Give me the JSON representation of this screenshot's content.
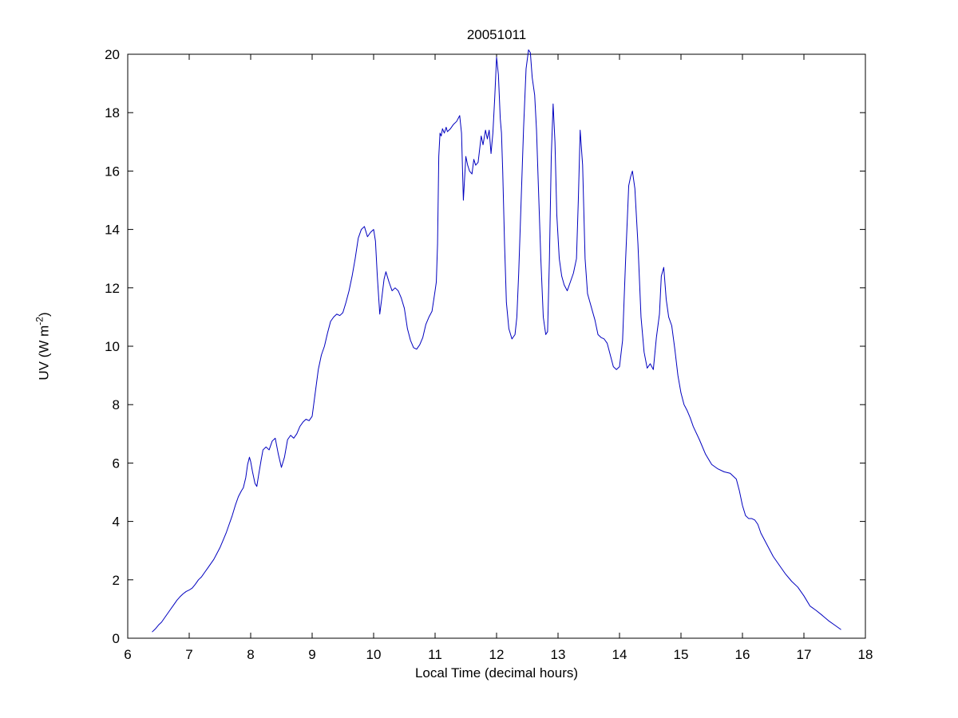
{
  "figure": {
    "background": "#ffffff"
  },
  "chart_data": {
    "type": "line",
    "title": "20051011",
    "xlabel": "Local Time (decimal hours)",
    "ylabel_prefix": "UV (W m",
    "ylabel_sup": "-2",
    "ylabel_suffix": ")",
    "xlim": [
      6,
      18
    ],
    "ylim": [
      0,
      20
    ],
    "xticks": [
      6,
      7,
      8,
      9,
      10,
      11,
      12,
      13,
      14,
      15,
      16,
      17,
      18
    ],
    "yticks": [
      0,
      2,
      4,
      6,
      8,
      10,
      12,
      14,
      16,
      18,
      20
    ],
    "grid": false,
    "legend": "none",
    "line_color": "#0000BF",
    "axis_color": "#000000",
    "series": [
      {
        "name": "UV",
        "points": [
          [
            6.4,
            0.22
          ],
          [
            6.45,
            0.32
          ],
          [
            6.5,
            0.45
          ],
          [
            6.55,
            0.55
          ],
          [
            6.6,
            0.7
          ],
          [
            6.65,
            0.85
          ],
          [
            6.7,
            1.0
          ],
          [
            6.75,
            1.15
          ],
          [
            6.8,
            1.3
          ],
          [
            6.85,
            1.42
          ],
          [
            6.9,
            1.52
          ],
          [
            6.95,
            1.6
          ],
          [
            7.0,
            1.65
          ],
          [
            7.05,
            1.72
          ],
          [
            7.1,
            1.85
          ],
          [
            7.15,
            2.0
          ],
          [
            7.2,
            2.1
          ],
          [
            7.25,
            2.25
          ],
          [
            7.3,
            2.4
          ],
          [
            7.35,
            2.55
          ],
          [
            7.4,
            2.7
          ],
          [
            7.45,
            2.9
          ],
          [
            7.5,
            3.1
          ],
          [
            7.55,
            3.35
          ],
          [
            7.6,
            3.6
          ],
          [
            7.65,
            3.9
          ],
          [
            7.7,
            4.2
          ],
          [
            7.75,
            4.55
          ],
          [
            7.8,
            4.85
          ],
          [
            7.85,
            5.05
          ],
          [
            7.88,
            5.15
          ],
          [
            7.92,
            5.5
          ],
          [
            7.95,
            5.95
          ],
          [
            7.98,
            6.2
          ],
          [
            8.0,
            6.05
          ],
          [
            8.03,
            5.7
          ],
          [
            8.07,
            5.3
          ],
          [
            8.1,
            5.2
          ],
          [
            8.13,
            5.6
          ],
          [
            8.17,
            6.1
          ],
          [
            8.2,
            6.45
          ],
          [
            8.25,
            6.55
          ],
          [
            8.3,
            6.45
          ],
          [
            8.35,
            6.75
          ],
          [
            8.4,
            6.85
          ],
          [
            8.45,
            6.3
          ],
          [
            8.5,
            5.85
          ],
          [
            8.55,
            6.2
          ],
          [
            8.6,
            6.8
          ],
          [
            8.65,
            6.95
          ],
          [
            8.7,
            6.85
          ],
          [
            8.75,
            7.0
          ],
          [
            8.8,
            7.25
          ],
          [
            8.85,
            7.4
          ],
          [
            8.9,
            7.5
          ],
          [
            8.95,
            7.45
          ],
          [
            9.0,
            7.6
          ],
          [
            9.05,
            8.4
          ],
          [
            9.1,
            9.2
          ],
          [
            9.15,
            9.7
          ],
          [
            9.2,
            10.0
          ],
          [
            9.25,
            10.45
          ],
          [
            9.3,
            10.85
          ],
          [
            9.35,
            11.0
          ],
          [
            9.4,
            11.1
          ],
          [
            9.45,
            11.05
          ],
          [
            9.5,
            11.15
          ],
          [
            9.55,
            11.5
          ],
          [
            9.6,
            11.9
          ],
          [
            9.65,
            12.4
          ],
          [
            9.7,
            13.0
          ],
          [
            9.75,
            13.7
          ],
          [
            9.8,
            14.0
          ],
          [
            9.85,
            14.1
          ],
          [
            9.9,
            13.75
          ],
          [
            9.95,
            13.9
          ],
          [
            10.0,
            14.0
          ],
          [
            10.03,
            13.6
          ],
          [
            10.06,
            12.4
          ],
          [
            10.1,
            11.1
          ],
          [
            10.13,
            11.6
          ],
          [
            10.17,
            12.3
          ],
          [
            10.2,
            12.55
          ],
          [
            10.25,
            12.2
          ],
          [
            10.3,
            11.9
          ],
          [
            10.35,
            12.0
          ],
          [
            10.4,
            11.9
          ],
          [
            10.45,
            11.65
          ],
          [
            10.5,
            11.3
          ],
          [
            10.55,
            10.6
          ],
          [
            10.6,
            10.2
          ],
          [
            10.65,
            9.95
          ],
          [
            10.7,
            9.9
          ],
          [
            10.75,
            10.05
          ],
          [
            10.8,
            10.3
          ],
          [
            10.85,
            10.75
          ],
          [
            10.9,
            11.0
          ],
          [
            10.95,
            11.2
          ],
          [
            11.0,
            11.9
          ],
          [
            11.02,
            12.2
          ],
          [
            11.04,
            13.5
          ],
          [
            11.06,
            16.5
          ],
          [
            11.08,
            17.3
          ],
          [
            11.1,
            17.2
          ],
          [
            11.12,
            17.45
          ],
          [
            11.15,
            17.3
          ],
          [
            11.18,
            17.5
          ],
          [
            11.2,
            17.35
          ],
          [
            11.25,
            17.45
          ],
          [
            11.3,
            17.6
          ],
          [
            11.35,
            17.7
          ],
          [
            11.4,
            17.9
          ],
          [
            11.43,
            17.3
          ],
          [
            11.46,
            15.0
          ],
          [
            11.5,
            16.5
          ],
          [
            11.53,
            16.2
          ],
          [
            11.56,
            16.0
          ],
          [
            11.6,
            15.9
          ],
          [
            11.63,
            16.4
          ],
          [
            11.66,
            16.2
          ],
          [
            11.7,
            16.3
          ],
          [
            11.75,
            17.2
          ],
          [
            11.78,
            16.9
          ],
          [
            11.82,
            17.4
          ],
          [
            11.85,
            17.1
          ],
          [
            11.88,
            17.4
          ],
          [
            11.91,
            16.6
          ],
          [
            11.94,
            17.3
          ],
          [
            11.97,
            18.5
          ],
          [
            12.0,
            19.9
          ],
          [
            12.03,
            19.3
          ],
          [
            12.06,
            17.8
          ],
          [
            12.08,
            17.3
          ],
          [
            12.1,
            16.0
          ],
          [
            12.13,
            13.5
          ],
          [
            12.16,
            11.5
          ],
          [
            12.2,
            10.6
          ],
          [
            12.25,
            10.25
          ],
          [
            12.3,
            10.4
          ],
          [
            12.33,
            11.0
          ],
          [
            12.36,
            12.5
          ],
          [
            12.4,
            15.0
          ],
          [
            12.44,
            17.5
          ],
          [
            12.48,
            19.5
          ],
          [
            12.52,
            20.15
          ],
          [
            12.55,
            20.05
          ],
          [
            12.58,
            19.2
          ],
          [
            12.62,
            18.6
          ],
          [
            12.65,
            17.4
          ],
          [
            12.68,
            15.5
          ],
          [
            12.72,
            13.0
          ],
          [
            12.76,
            11.0
          ],
          [
            12.8,
            10.4
          ],
          [
            12.83,
            10.5
          ],
          [
            12.86,
            13.0
          ],
          [
            12.89,
            16.5
          ],
          [
            12.92,
            18.3
          ],
          [
            12.95,
            17.0
          ],
          [
            12.98,
            14.5
          ],
          [
            13.02,
            13.0
          ],
          [
            13.06,
            12.4
          ],
          [
            13.1,
            12.1
          ],
          [
            13.15,
            11.9
          ],
          [
            13.2,
            12.2
          ],
          [
            13.25,
            12.5
          ],
          [
            13.3,
            13.0
          ],
          [
            13.33,
            15.0
          ],
          [
            13.36,
            17.4
          ],
          [
            13.4,
            16.2
          ],
          [
            13.44,
            13.0
          ],
          [
            13.48,
            11.8
          ],
          [
            13.52,
            11.5
          ],
          [
            13.56,
            11.2
          ],
          [
            13.6,
            10.9
          ],
          [
            13.65,
            10.4
          ],
          [
            13.7,
            10.3
          ],
          [
            13.75,
            10.25
          ],
          [
            13.8,
            10.1
          ],
          [
            13.85,
            9.7
          ],
          [
            13.9,
            9.3
          ],
          [
            13.95,
            9.2
          ],
          [
            14.0,
            9.3
          ],
          [
            14.05,
            10.2
          ],
          [
            14.1,
            13.0
          ],
          [
            14.15,
            15.5
          ],
          [
            14.18,
            15.8
          ],
          [
            14.21,
            16.0
          ],
          [
            14.25,
            15.4
          ],
          [
            14.3,
            13.5
          ],
          [
            14.35,
            11.0
          ],
          [
            14.4,
            9.8
          ],
          [
            14.45,
            9.25
          ],
          [
            14.5,
            9.4
          ],
          [
            14.55,
            9.2
          ],
          [
            14.6,
            10.3
          ],
          [
            14.65,
            11.1
          ],
          [
            14.68,
            12.4
          ],
          [
            14.72,
            12.7
          ],
          [
            14.76,
            11.6
          ],
          [
            14.8,
            11.0
          ],
          [
            14.85,
            10.7
          ],
          [
            14.9,
            9.9
          ],
          [
            14.95,
            9.0
          ],
          [
            15.0,
            8.4
          ],
          [
            15.05,
            8.0
          ],
          [
            15.1,
            7.8
          ],
          [
            15.15,
            7.55
          ],
          [
            15.2,
            7.25
          ],
          [
            15.3,
            6.8
          ],
          [
            15.4,
            6.3
          ],
          [
            15.5,
            5.95
          ],
          [
            15.6,
            5.8
          ],
          [
            15.7,
            5.7
          ],
          [
            15.8,
            5.65
          ],
          [
            15.9,
            5.45
          ],
          [
            15.95,
            5.05
          ],
          [
            16.0,
            4.55
          ],
          [
            16.05,
            4.2
          ],
          [
            16.1,
            4.1
          ],
          [
            16.15,
            4.1
          ],
          [
            16.2,
            4.05
          ],
          [
            16.25,
            3.9
          ],
          [
            16.3,
            3.6
          ],
          [
            16.4,
            3.2
          ],
          [
            16.5,
            2.8
          ],
          [
            16.6,
            2.5
          ],
          [
            16.7,
            2.2
          ],
          [
            16.8,
            1.95
          ],
          [
            16.9,
            1.75
          ],
          [
            17.0,
            1.45
          ],
          [
            17.1,
            1.1
          ],
          [
            17.2,
            0.95
          ],
          [
            17.3,
            0.78
          ],
          [
            17.4,
            0.6
          ],
          [
            17.5,
            0.45
          ],
          [
            17.6,
            0.3
          ]
        ]
      }
    ]
  }
}
